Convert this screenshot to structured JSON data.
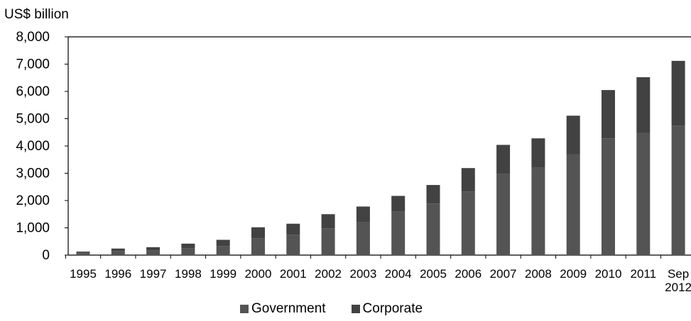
{
  "chart_data": {
    "type": "bar",
    "stacked": true,
    "ylabel": "US$ billion",
    "ylim": [
      0,
      8000
    ],
    "yticks": [
      "0",
      "1,000",
      "2,000",
      "3,000",
      "4,000",
      "5,000",
      "6,000",
      "7,000",
      "8,000"
    ],
    "ytick_values": [
      0,
      1000,
      2000,
      3000,
      4000,
      5000,
      6000,
      7000,
      8000
    ],
    "categories": [
      "1995",
      "1996",
      "1997",
      "1998",
      "1999",
      "2000",
      "2001",
      "2002",
      "2003",
      "2004",
      "2005",
      "2006",
      "2007",
      "2008",
      "2009",
      "2010",
      "2011",
      "Sep 2012"
    ],
    "series": [
      {
        "name": "Government",
        "color": "#545454",
        "values": [
          100,
          150,
          180,
          250,
          330,
          620,
          750,
          980,
          1220,
          1600,
          1890,
          2330,
          2970,
          3210,
          3690,
          4280,
          4470,
          4750
        ]
      },
      {
        "name": "Corporate",
        "color": "#424242",
        "values": [
          30,
          90,
          110,
          170,
          230,
          400,
          400,
          520,
          560,
          570,
          680,
          860,
          1070,
          1070,
          1420,
          1770,
          2050,
          2370
        ]
      }
    ],
    "grid": false,
    "legend": "bottom-center"
  }
}
